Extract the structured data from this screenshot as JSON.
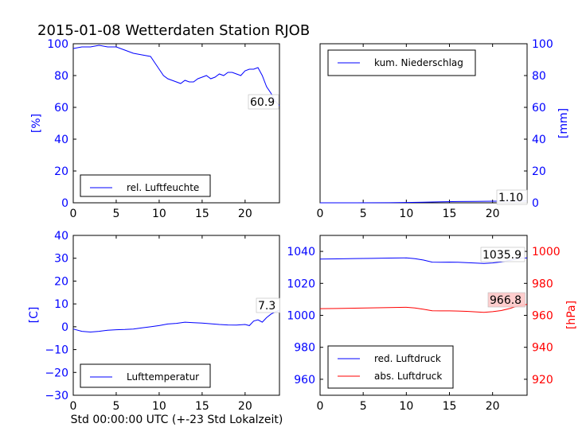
{
  "figure": {
    "title": "2015-01-08 Wetterdaten Station RJOB",
    "xlabel": "Std 00:00:00 UTC (+-23 Std Lokalzeit)"
  },
  "colors": {
    "blue": "#0000ff",
    "red": "#ff0000",
    "black": "#000000",
    "annotation_red_bg": "#ffc8c8"
  },
  "chart_data": [
    {
      "type": "line",
      "ylabel": "[%]",
      "xlim": [
        0,
        24
      ],
      "ylim": [
        0,
        100
      ],
      "xticks": [
        0,
        5,
        10,
        15,
        20
      ],
      "yticks": [
        0,
        20,
        40,
        60,
        80,
        100
      ],
      "legend": "lower-left",
      "annotation": "60.9",
      "series": [
        {
          "name": "rel. Luftfeuchte",
          "color": "#0000ff",
          "x": [
            0,
            1,
            2,
            3,
            4,
            5,
            6,
            7,
            8,
            9,
            9.5,
            10,
            10.5,
            11,
            11.5,
            12,
            12.5,
            13,
            13.5,
            14,
            14.5,
            15,
            15.5,
            16,
            16.5,
            17,
            17.5,
            18,
            18.5,
            19,
            19.5,
            20,
            20.5,
            21,
            21.5,
            22,
            22.5,
            23,
            23.5,
            24
          ],
          "y": [
            97,
            98,
            98,
            99,
            98,
            98,
            96,
            94,
            93,
            92,
            88,
            84,
            80,
            78,
            77,
            76,
            75,
            77,
            76,
            76,
            78,
            79,
            80,
            78,
            79,
            81,
            80,
            82,
            82,
            81,
            80,
            83,
            84,
            84,
            85,
            80,
            73,
            69,
            64,
            61
          ]
        }
      ]
    },
    {
      "type": "line",
      "ylabel": "[mm]",
      "xlim": [
        0,
        24
      ],
      "ylim": [
        0,
        100
      ],
      "xticks": [
        0,
        5,
        10,
        15,
        20
      ],
      "yticks": [
        0,
        20,
        40,
        60,
        80,
        100
      ],
      "legend": "top-left",
      "annotation": "1.10",
      "series": [
        {
          "name": "kum. Niederschlag",
          "color": "#0000ff",
          "x": [
            0,
            4,
            8,
            10,
            12,
            14,
            16,
            18,
            20,
            22,
            24
          ],
          "y": [
            0,
            0,
            0.05,
            0.2,
            0.4,
            0.6,
            0.8,
            0.9,
            1.0,
            1.05,
            1.1
          ]
        }
      ]
    },
    {
      "type": "line",
      "ylabel": "[C]",
      "xlim": [
        0,
        24
      ],
      "ylim": [
        -30,
        40
      ],
      "xticks": [
        0,
        5,
        10,
        15,
        20
      ],
      "yticks": [
        -30,
        -20,
        -10,
        0,
        10,
        20,
        30,
        40
      ],
      "legend": "lower-left",
      "annotation": "7.3",
      "series": [
        {
          "name": "Lufttemperatur",
          "color": "#0000ff",
          "x": [
            0,
            1,
            2,
            3,
            4,
            5,
            6,
            7,
            8,
            9,
            10,
            11,
            12,
            13,
            14,
            15,
            16,
            17,
            18,
            19,
            20,
            20.5,
            21,
            21.5,
            22,
            22.5,
            23,
            23.5,
            24
          ],
          "y": [
            -1.0,
            -2.0,
            -2.3,
            -2.0,
            -1.5,
            -1.3,
            -1.2,
            -1.0,
            -0.5,
            0,
            0.5,
            1.2,
            1.5,
            2.0,
            1.8,
            1.6,
            1.3,
            1.0,
            0.8,
            0.7,
            1.0,
            0.5,
            2.5,
            3.0,
            2.0,
            4.0,
            5.5,
            6.5,
            7.3
          ]
        }
      ]
    },
    {
      "type": "line",
      "ylabel_right": "[hPa]",
      "xlim": [
        0,
        24
      ],
      "ylim_left": [
        950,
        1050
      ],
      "ylim_right": [
        910,
        1010
      ],
      "xticks": [
        0,
        5,
        10,
        15,
        20
      ],
      "yticks_left": [
        960,
        980,
        1000,
        1020,
        1040
      ],
      "yticks_right": [
        920,
        940,
        960,
        980,
        1000
      ],
      "legend": "lower-left",
      "annotations": [
        "1035.9",
        "966.8"
      ],
      "series": [
        {
          "name": "red. Luftdruck",
          "color": "#0000ff",
          "axis": "left",
          "x": [
            0,
            2,
            4,
            6,
            8,
            10,
            11,
            12,
            13,
            14,
            15,
            16,
            17,
            18,
            19,
            20,
            21,
            22,
            23,
            24
          ],
          "y": [
            1035.2,
            1035.3,
            1035.5,
            1035.6,
            1035.8,
            1035.9,
            1035.4,
            1034.6,
            1033.3,
            1033.2,
            1033.3,
            1033.2,
            1033.0,
            1032.7,
            1032.5,
            1032.8,
            1033.4,
            1034.4,
            1035.5,
            1035.9
          ]
        },
        {
          "name": "abs. Luftdruck",
          "color": "#ff0000",
          "axis": "right",
          "x": [
            0,
            2,
            4,
            6,
            8,
            10,
            11,
            12,
            13,
            14,
            15,
            16,
            17,
            18,
            19,
            20,
            21,
            22,
            23,
            24
          ],
          "y": [
            964.2,
            964.3,
            964.5,
            964.7,
            964.9,
            965.0,
            964.6,
            963.8,
            962.9,
            962.8,
            962.8,
            962.7,
            962.5,
            962.2,
            961.9,
            962.3,
            963.0,
            964.3,
            966.0,
            966.8
          ]
        }
      ]
    }
  ]
}
